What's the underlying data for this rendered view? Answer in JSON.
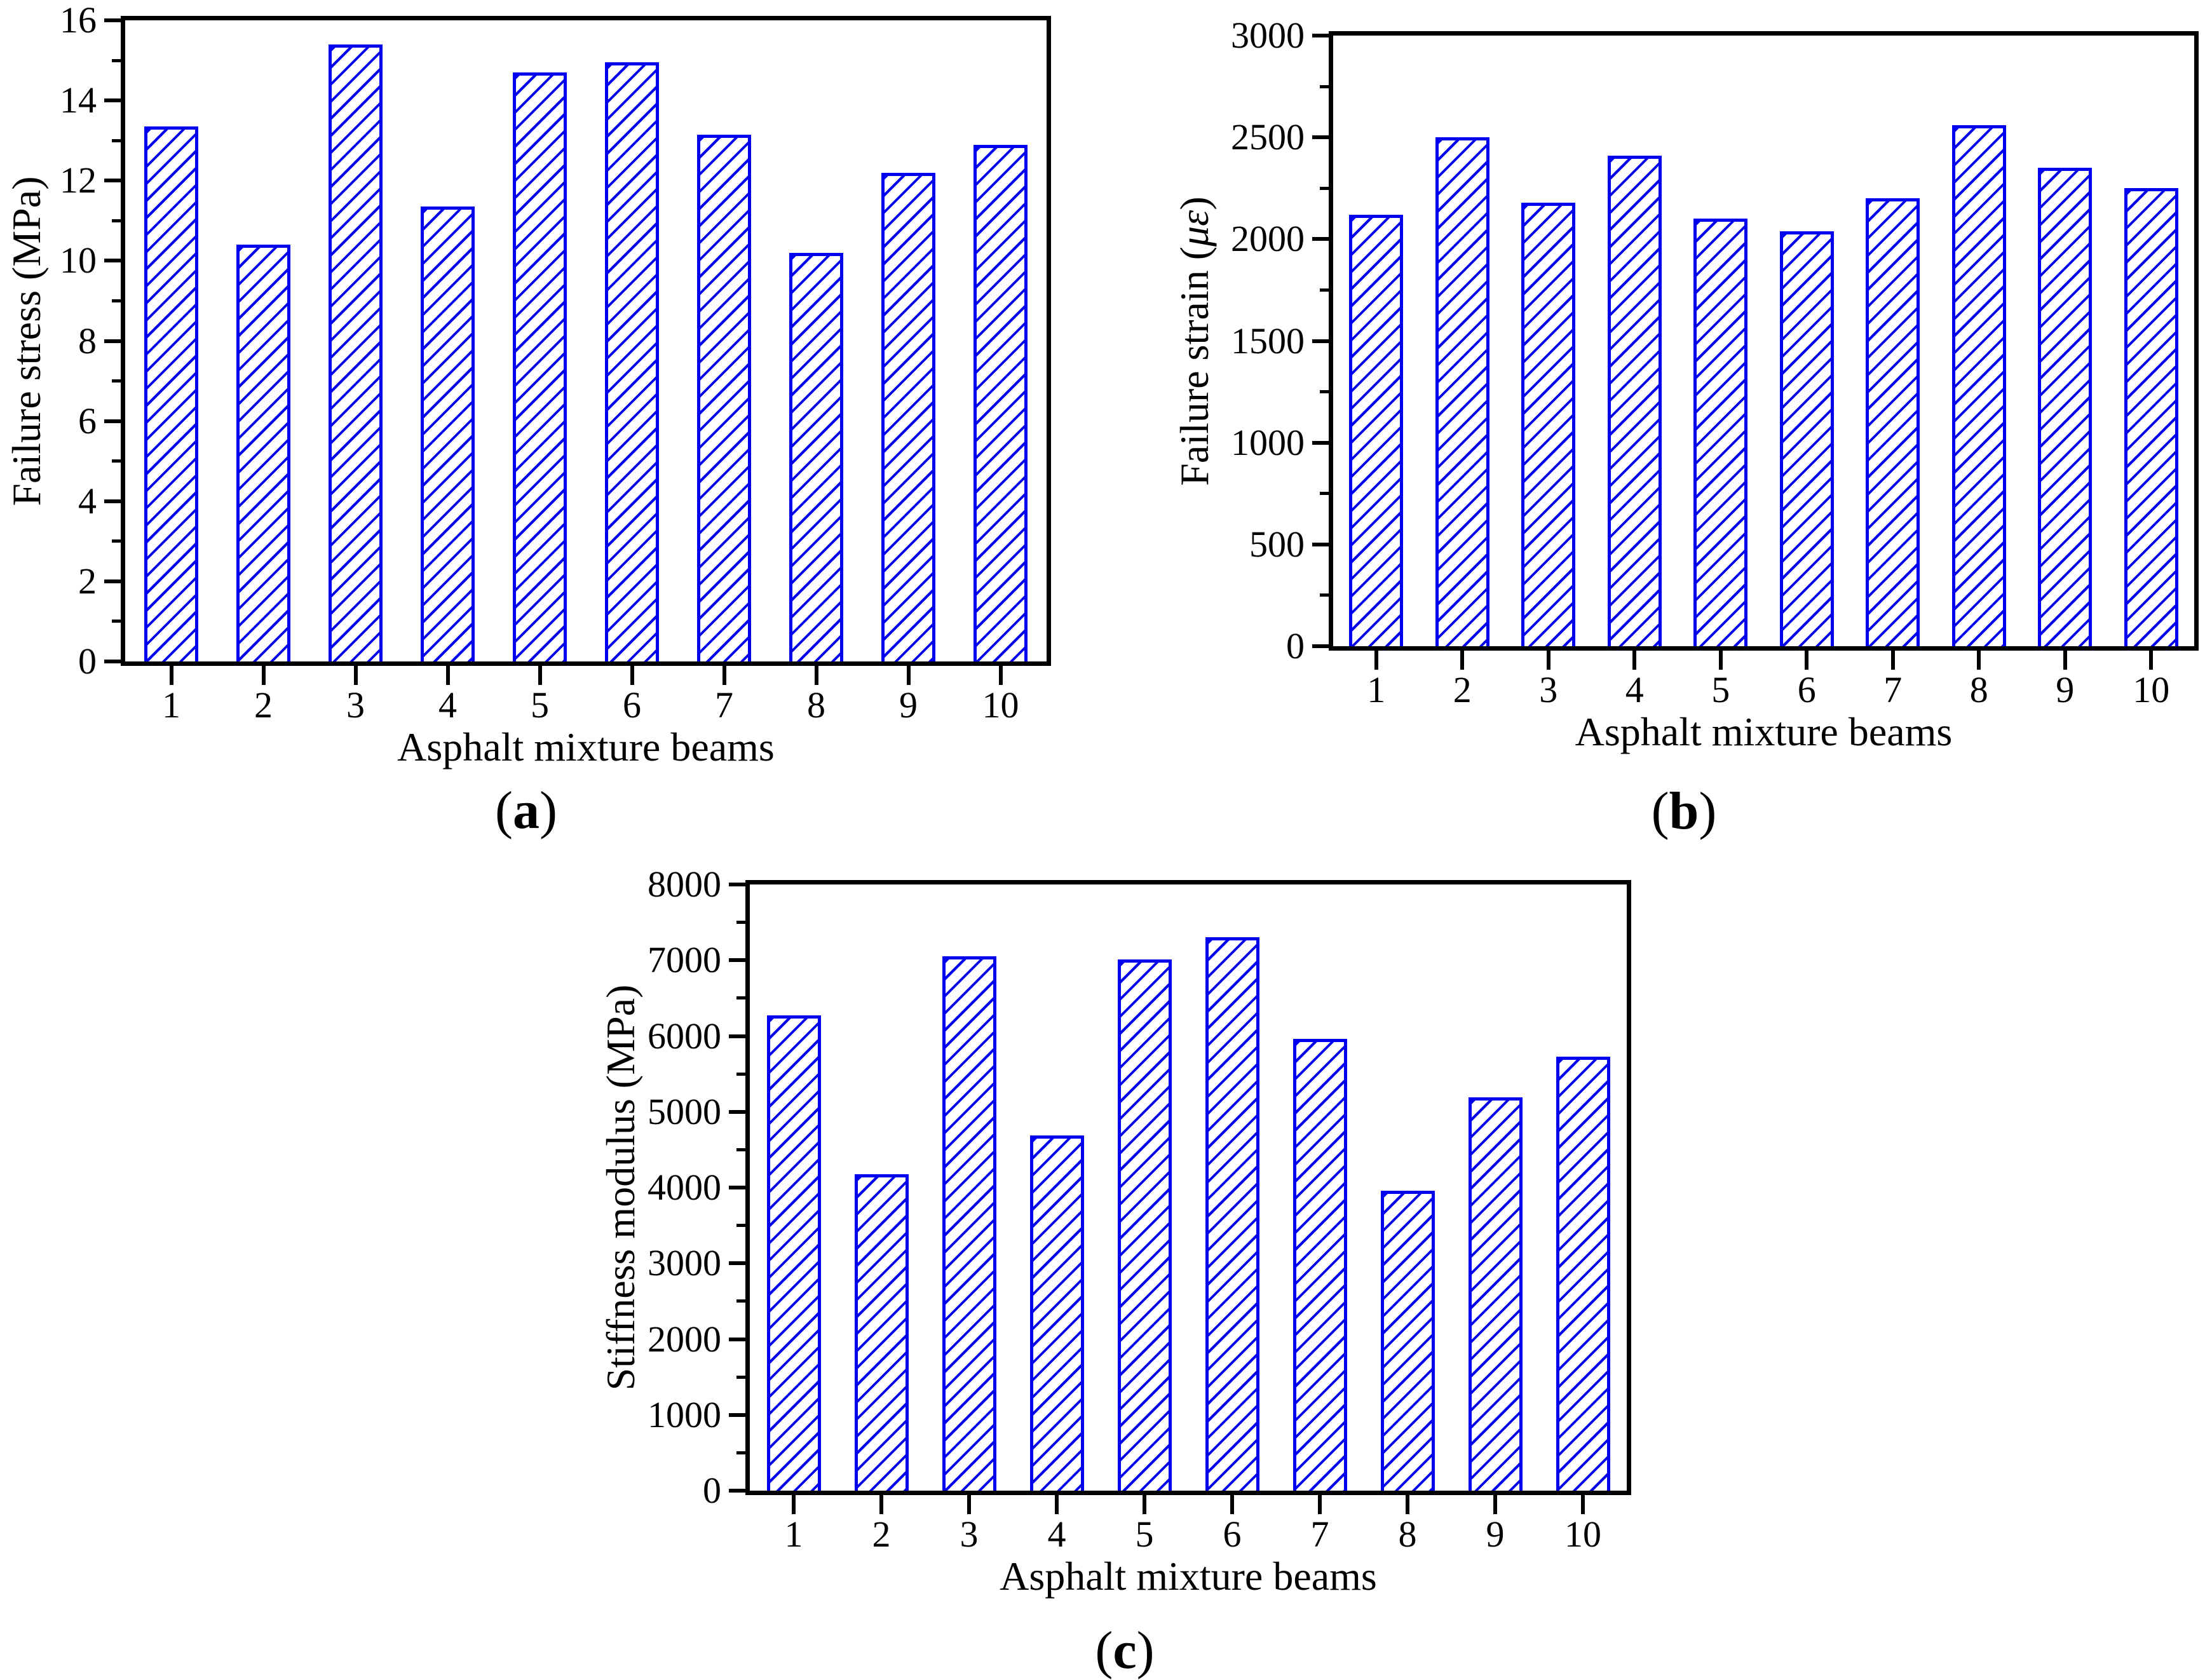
{
  "figure": {
    "colors": {
      "bar_edge": "#0000ee",
      "axis": "#000000",
      "background": "#ffffff"
    },
    "bar_style": {
      "hatch": "diagonal-forward",
      "fill": "white"
    }
  },
  "chart_data": [
    {
      "panel": "a",
      "type": "bar",
      "xlabel": "Asphalt mixture beams",
      "ylabel": "Failure stress (MPa)",
      "ylabel_italic": "",
      "categories": [
        "1",
        "2",
        "3",
        "4",
        "5",
        "6",
        "7",
        "8",
        "9",
        "10"
      ],
      "values": [
        13.35,
        10.4,
        15.4,
        11.35,
        14.7,
        14.95,
        13.15,
        10.2,
        12.2,
        12.9
      ],
      "ylim": [
        0,
        16
      ],
      "yticks": [
        0,
        2,
        4,
        6,
        8,
        10,
        12,
        14,
        16
      ],
      "minor_ticks_per_interval": 1,
      "grid": false,
      "legend": null,
      "caption_open": "(",
      "caption_letter": "a",
      "caption_close": ")"
    },
    {
      "panel": "b",
      "type": "bar",
      "xlabel": "Asphalt mixture beams",
      "ylabel": "Failure strain (με)",
      "ylabel_italic": "με",
      "categories": [
        "1",
        "2",
        "3",
        "4",
        "5",
        "6",
        "7",
        "8",
        "9",
        "10"
      ],
      "values": [
        2120,
        2500,
        2180,
        2410,
        2100,
        2040,
        2200,
        2560,
        2350,
        2250
      ],
      "ylim": [
        0,
        3000
      ],
      "yticks": [
        0,
        500,
        1000,
        1500,
        2000,
        2500,
        3000
      ],
      "minor_ticks_per_interval": 1,
      "grid": false,
      "legend": null,
      "caption_open": "(",
      "caption_letter": "b",
      "caption_close": ")"
    },
    {
      "panel": "c",
      "type": "bar",
      "xlabel": "Asphalt mixture beams",
      "ylabel": "Stiffness modulus (MPa)",
      "ylabel_italic": "",
      "categories": [
        "1",
        "2",
        "3",
        "4",
        "5",
        "6",
        "7",
        "8",
        "9",
        "10"
      ],
      "values": [
        6270,
        4180,
        7050,
        4690,
        7010,
        7300,
        5960,
        3960,
        5190,
        5730
      ],
      "ylim": [
        0,
        8000
      ],
      "yticks": [
        0,
        1000,
        2000,
        3000,
        4000,
        5000,
        6000,
        7000,
        8000
      ],
      "minor_ticks_per_interval": 1,
      "grid": false,
      "legend": null,
      "caption_open": "(",
      "caption_letter": "c",
      "caption_close": ")"
    }
  ]
}
